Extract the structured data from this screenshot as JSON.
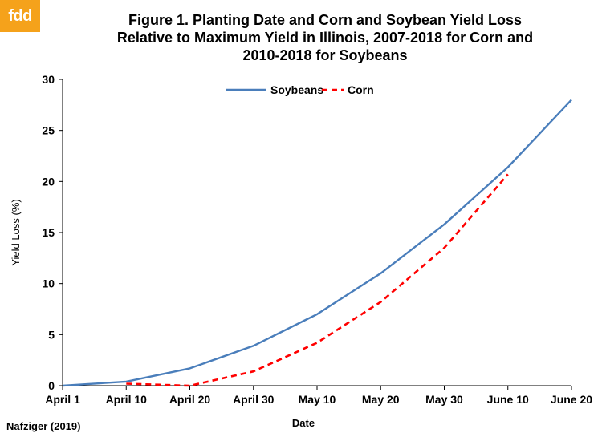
{
  "logo": {
    "text": "fdd",
    "color": "#f5a21b"
  },
  "title_lines": [
    "Figure 1.  Planting Date and Corn and Soybean Yield Loss",
    "Relative to Maximum Yield in Illinois, 2007-2018  for Corn and",
    "2010-2018  for Soybeans"
  ],
  "source": "Nafziger (2019)",
  "chart_data": {
    "type": "line",
    "title": "Figure 1.  Planting Date and Corn and Soybean Yield Loss Relative to Maximum Yield in Illinois, 2007-2018  for Corn and 2010-2018  for Soybeans",
    "xlabel": "Date",
    "ylabel": "Yield Loss (%)",
    "categories": [
      "April 1",
      "April 10",
      "April 20",
      "April 30",
      "May 10",
      "May 20",
      "May 30",
      "June 10",
      "June 20"
    ],
    "ylim": [
      0,
      30
    ],
    "yticks": [
      0,
      5,
      10,
      15,
      20,
      25,
      30
    ],
    "grid": false,
    "legend_position": "top-center",
    "series": [
      {
        "name": "Soybeans",
        "color": "#4a7ebb",
        "style": "solid",
        "values": [
          0,
          0.4,
          1.7,
          3.9,
          7.0,
          11.0,
          15.8,
          21.4,
          28.0
        ]
      },
      {
        "name": "Corn",
        "color": "#ff0000",
        "style": "dashed",
        "values": [
          null,
          0.2,
          0,
          1.4,
          4.2,
          8.2,
          13.5,
          20.7,
          null
        ]
      }
    ]
  }
}
